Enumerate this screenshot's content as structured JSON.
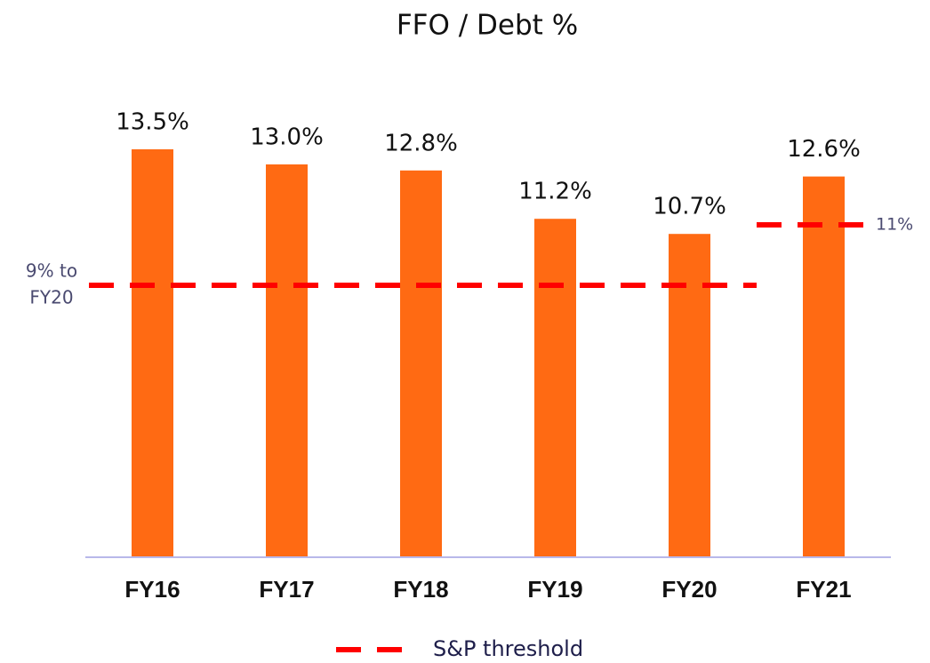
{
  "chart_data": {
    "type": "bar",
    "title": "FFO / Debt %",
    "categories": [
      "FY16",
      "FY17",
      "FY18",
      "FY19",
      "FY20",
      "FY21"
    ],
    "values": [
      13.5,
      13.0,
      12.8,
      11.2,
      10.7,
      12.6
    ],
    "value_labels": [
      "13.5%",
      "13.0%",
      "12.8%",
      "11.2%",
      "10.7%",
      "12.6%"
    ],
    "color": "#ff6a13",
    "ylim": [
      0,
      16
    ],
    "threshold_name": "S&P threshold",
    "threshold_color": "#ff0000",
    "thresholds": [
      {
        "value": 9,
        "label": [
          "9% to",
          "FY20"
        ],
        "span": [
          "FY16",
          "FY20"
        ]
      },
      {
        "value": 11,
        "label": [
          "11%"
        ],
        "span": [
          "FY21",
          "FY21"
        ]
      }
    ]
  }
}
